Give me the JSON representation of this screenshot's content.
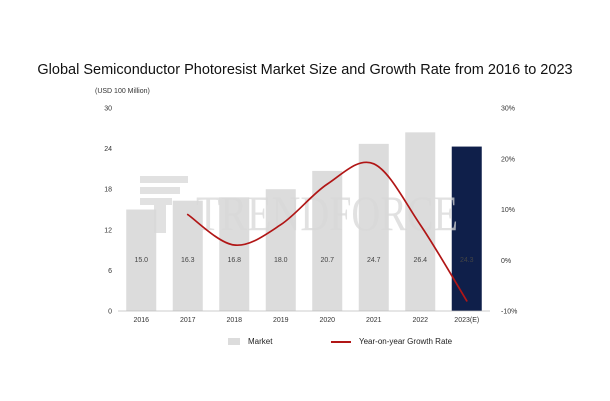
{
  "chart_data": {
    "type": "bar",
    "title": "Global Semiconductor Photoresist Market Size and Growth Rate from 2016 to 2023",
    "unit_label": "(USD 100 Million)",
    "categories": [
      "2016",
      "2017",
      "2018",
      "2019",
      "2020",
      "2021",
      "2022",
      "2023(E)"
    ],
    "series": [
      {
        "name": "Market",
        "kind": "bar",
        "axis": "left",
        "values": [
          15.0,
          16.3,
          16.8,
          18.0,
          20.7,
          24.7,
          26.4,
          24.3
        ],
        "data_labels": [
          "15.0",
          "16.3",
          "16.8",
          "18.0",
          "20.7",
          "24.7",
          "26.4",
          "24.3"
        ]
      },
      {
        "name": "Year-on-year Growth Rate",
        "kind": "line",
        "axis": "right",
        "values": [
          null,
          9,
          3,
          7,
          15,
          19,
          7,
          -8
        ]
      }
    ],
    "ylim": [
      0,
      30
    ],
    "yticks": [
      "0",
      "6",
      "12",
      "18",
      "24",
      "30"
    ],
    "y2lim": [
      -10,
      30
    ],
    "y2ticks": [
      "-10%",
      "0%",
      "10%",
      "20%",
      "30%"
    ],
    "grid": false,
    "legend_position": "bottom",
    "colors": {
      "bar": "#dcdcdc",
      "bar_highlight": "#0f1f4a",
      "line": "#b11616",
      "watermark": "#d8d8d8"
    },
    "highlight_index": 7,
    "watermark_text": "TRENDFORCE"
  }
}
